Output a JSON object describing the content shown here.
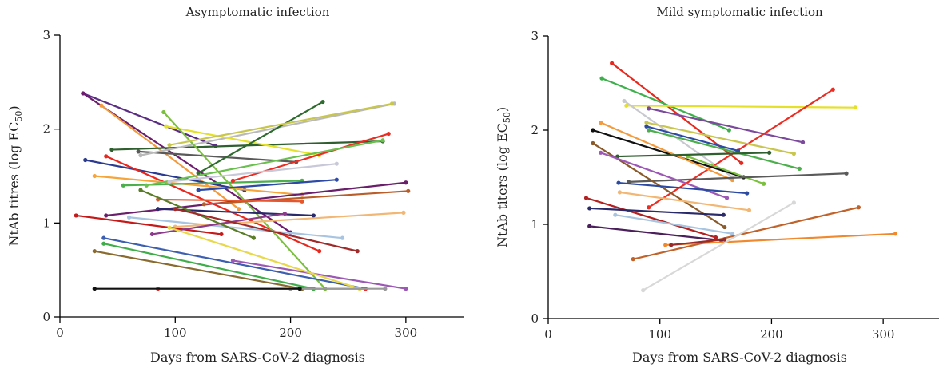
{
  "chart_data": [
    {
      "type": "line",
      "title": "Asymptomatic infection",
      "xlabel": "Days from SARS-CoV-2 diagnosis",
      "ylabel_main": "NtAb titres (log EC",
      "ylabel_sub": "50",
      "ylabel_tail": ")",
      "xlim": [
        0,
        350
      ],
      "ylim": [
        0,
        3
      ],
      "xticks": [
        "0",
        "100",
        "200",
        "300"
      ],
      "yticks": [
        "0",
        "1",
        "2",
        "3"
      ],
      "grid": false,
      "series": [
        {
          "color": "#5b2c83",
          "x": [
            20,
            135
          ],
          "y": [
            2.38,
            1.82
          ]
        },
        {
          "color": "#6d1d6d",
          "x": [
            20,
            200
          ],
          "y": [
            2.38,
            0.9
          ]
        },
        {
          "color": "#f39a3c",
          "x": [
            36,
            155
          ],
          "y": [
            2.25,
            1.15
          ]
        },
        {
          "color": "#2f5f2f",
          "x": [
            45,
            280
          ],
          "y": [
            1.78,
            1.87
          ]
        },
        {
          "color": "#5a5a5a",
          "x": [
            68,
            205
          ],
          "y": [
            1.76,
            1.65
          ]
        },
        {
          "color": "#b9b9b9",
          "x": [
            70,
            290
          ],
          "y": [
            1.72,
            2.27
          ]
        },
        {
          "color": "#2b3b8f",
          "x": [
            22,
            160
          ],
          "y": [
            1.67,
            1.35
          ]
        },
        {
          "color": "#e8281e",
          "x": [
            40,
            225
          ],
          "y": [
            1.71,
            0.7
          ]
        },
        {
          "color": "#f6a53a",
          "x": [
            30,
            210
          ],
          "y": [
            1.5,
            1.3
          ]
        },
        {
          "color": "#4cae4c",
          "x": [
            55,
            210
          ],
          "y": [
            1.4,
            1.45
          ]
        },
        {
          "color": "#e5e12b",
          "x": [
            92,
            225
          ],
          "y": [
            2.03,
            1.72
          ]
        },
        {
          "color": "#7bbf3f",
          "x": [
            90,
            230
          ],
          "y": [
            2.18,
            0.3
          ]
        },
        {
          "color": "#2e6b2e",
          "x": [
            120,
            228
          ],
          "y": [
            1.53,
            2.29
          ]
        },
        {
          "color": "#c9c64f",
          "x": [
            95,
            288
          ],
          "y": [
            1.83,
            2.27
          ]
        },
        {
          "color": "#ec2d23",
          "x": [
            150,
            285
          ],
          "y": [
            1.45,
            1.95
          ]
        },
        {
          "color": "#6ac04f",
          "x": [
            75,
            280
          ],
          "y": [
            1.4,
            1.88
          ]
        },
        {
          "color": "#c8c8d8",
          "x": [
            95,
            240
          ],
          "y": [
            1.44,
            1.63
          ]
        },
        {
          "color": "#2c4aa6",
          "x": [
            120,
            240
          ],
          "y": [
            1.35,
            1.46
          ]
        },
        {
          "color": "#6a1f6a",
          "x": [
            40,
            300
          ],
          "y": [
            1.08,
            1.43
          ]
        },
        {
          "color": "#b95d2a",
          "x": [
            125,
            302
          ],
          "y": [
            1.2,
            1.34
          ]
        },
        {
          "color": "#e4572e",
          "x": [
            85,
            210
          ],
          "y": [
            1.25,
            1.23
          ]
        },
        {
          "color": "#2a2a6a",
          "x": [
            85,
            220
          ],
          "y": [
            1.15,
            1.08
          ]
        },
        {
          "color": "#a8c4e0",
          "x": [
            60,
            245
          ],
          "y": [
            1.06,
            0.84
          ]
        },
        {
          "color": "#f2b774",
          "x": [
            100,
            298
          ],
          "y": [
            0.96,
            1.11
          ]
        },
        {
          "color": "#c41a1a",
          "x": [
            14,
            140
          ],
          "y": [
            1.08,
            0.88
          ]
        },
        {
          "color": "#5a7d2a",
          "x": [
            70,
            168
          ],
          "y": [
            1.35,
            0.84
          ]
        },
        {
          "color": "#8c3a8c",
          "x": [
            80,
            195
          ],
          "y": [
            0.88,
            1.1
          ]
        },
        {
          "color": "#a02a2a",
          "x": [
            100,
            258
          ],
          "y": [
            1.15,
            0.7
          ]
        },
        {
          "color": "#3c5fb0",
          "x": [
            38,
            265
          ],
          "y": [
            0.84,
            0.3
          ]
        },
        {
          "color": "#3fae4a",
          "x": [
            38,
            220
          ],
          "y": [
            0.78,
            0.3
          ]
        },
        {
          "color": "#8a6a2e",
          "x": [
            30,
            210
          ],
          "y": [
            0.7,
            0.3
          ]
        },
        {
          "color": "#9b58b5",
          "x": [
            150,
            300
          ],
          "y": [
            0.6,
            0.3
          ]
        },
        {
          "color": "#e8d84a",
          "x": [
            95,
            260
          ],
          "y": [
            0.95,
            0.3
          ]
        },
        {
          "color": "#ee2c2c",
          "x": [
            85,
            265
          ],
          "y": [
            0.3,
            0.3
          ]
        },
        {
          "color": "#9a9a9a",
          "x": [
            200,
            282
          ],
          "y": [
            0.3,
            0.3
          ]
        },
        {
          "color": "#111111",
          "x": [
            30,
            208
          ],
          "y": [
            0.3,
            0.3
          ]
        }
      ]
    },
    {
      "type": "line",
      "title": "Mild symptomatic infection",
      "xlabel": "Days from SARS-CoV-2 diagnosis",
      "ylabel_main": "NtAb titers (log EC",
      "ylabel_sub": "50",
      "ylabel_tail": ")",
      "xlim": [
        0,
        350
      ],
      "ylim": [
        0,
        3
      ],
      "xticks": [
        "0",
        "100",
        "200",
        "300"
      ],
      "yticks": [
        "0",
        "1",
        "2",
        "3"
      ],
      "grid": false,
      "series": [
        {
          "color": "#e8281e",
          "x": [
            57,
            173
          ],
          "y": [
            2.71,
            1.65
          ]
        },
        {
          "color": "#3cb04a",
          "x": [
            48,
            162
          ],
          "y": [
            2.55,
            2.0
          ]
        },
        {
          "color": "#e5e12b",
          "x": [
            70,
            275
          ],
          "y": [
            2.26,
            2.24
          ]
        },
        {
          "color": "#c8c8d0",
          "x": [
            68,
            165
          ],
          "y": [
            2.31,
            1.5
          ]
        },
        {
          "color": "#7b4a9c",
          "x": [
            90,
            228
          ],
          "y": [
            2.23,
            1.87
          ]
        },
        {
          "color": "#ec2d23",
          "x": [
            90,
            255
          ],
          "y": [
            1.18,
            2.43
          ]
        },
        {
          "color": "#111111",
          "x": [
            40,
            175
          ],
          "y": [
            2.0,
            1.5
          ]
        },
        {
          "color": "#f39a3c",
          "x": [
            47,
            165
          ],
          "y": [
            2.08,
            1.47
          ]
        },
        {
          "color": "#c9c64f",
          "x": [
            88,
            220
          ],
          "y": [
            2.08,
            1.75
          ]
        },
        {
          "color": "#2c4aa6",
          "x": [
            88,
            170
          ],
          "y": [
            2.04,
            1.78
          ]
        },
        {
          "color": "#4cae4c",
          "x": [
            90,
            225
          ],
          "y": [
            2.0,
            1.59
          ]
        },
        {
          "color": "#7bbf3f",
          "x": [
            125,
            193
          ],
          "y": [
            1.72,
            1.43
          ]
        },
        {
          "color": "#2f5f2f",
          "x": [
            62,
            198
          ],
          "y": [
            1.72,
            1.76
          ]
        },
        {
          "color": "#5a5a5a",
          "x": [
            72,
            267
          ],
          "y": [
            1.45,
            1.54
          ]
        },
        {
          "color": "#8a5a2a",
          "x": [
            40,
            158
          ],
          "y": [
            1.86,
            0.97
          ]
        },
        {
          "color": "#9b58b5",
          "x": [
            47,
            160
          ],
          "y": [
            1.76,
            1.28
          ]
        },
        {
          "color": "#2b4aa0",
          "x": [
            63,
            178
          ],
          "y": [
            1.44,
            1.33
          ]
        },
        {
          "color": "#f2b774",
          "x": [
            64,
            180
          ],
          "y": [
            1.34,
            1.15
          ]
        },
        {
          "color": "#b22222",
          "x": [
            34,
            150
          ],
          "y": [
            1.28,
            0.86
          ]
        },
        {
          "color": "#2a2a6a",
          "x": [
            37,
            157
          ],
          "y": [
            1.17,
            1.1
          ]
        },
        {
          "color": "#a8c4e0",
          "x": [
            60,
            165
          ],
          "y": [
            1.1,
            0.9
          ]
        },
        {
          "color": "#4a1f5a",
          "x": [
            37,
            155
          ],
          "y": [
            0.98,
            0.83
          ]
        },
        {
          "color": "#f0892e",
          "x": [
            105,
            311
          ],
          "y": [
            0.78,
            0.9
          ]
        },
        {
          "color": "#c0622a",
          "x": [
            76,
            278
          ],
          "y": [
            0.63,
            1.18
          ]
        },
        {
          "color": "#d8d8d8",
          "x": [
            85,
            220
          ],
          "y": [
            0.3,
            1.23
          ]
        },
        {
          "color": "#9a2a2a",
          "x": [
            110,
            158
          ],
          "y": [
            0.78,
            0.84
          ]
        }
      ]
    }
  ]
}
